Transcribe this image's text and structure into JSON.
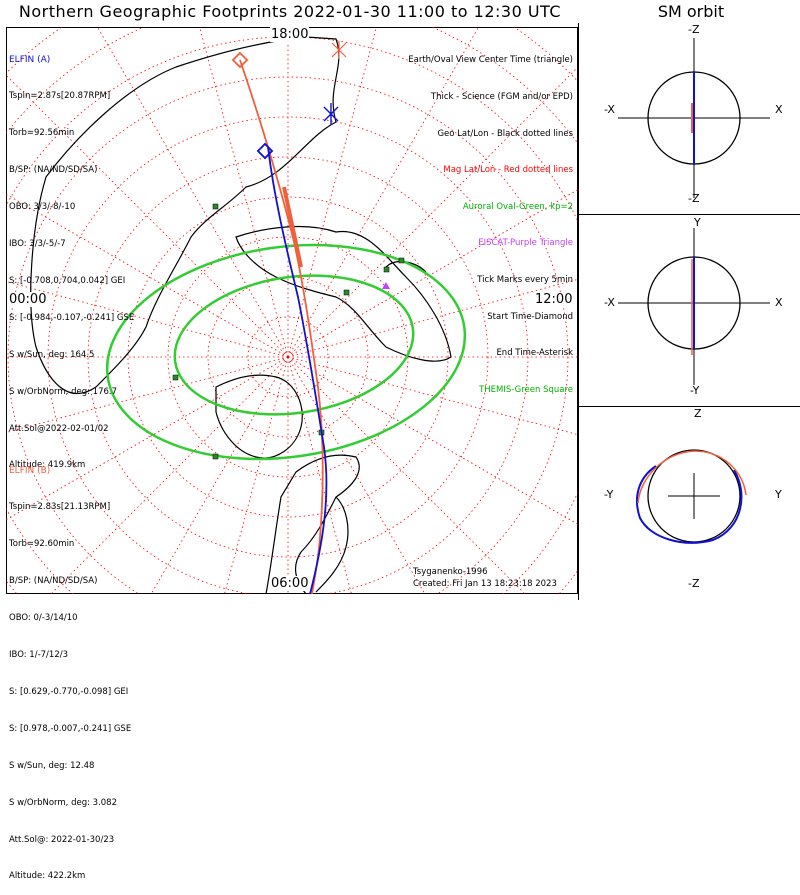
{
  "title": "Northern Geographic Footprints 2022-01-30 11:00 to 12:30 UTC",
  "sm_title": "SM orbit",
  "main_labels": {
    "top": "18:00",
    "left": "00:00",
    "right": "12:00",
    "bottom": "06:00"
  },
  "elfin_a": {
    "name": "ELFIN (A)",
    "color": "#1010d0",
    "lines": [
      "Tspin=2.87s[20.87RPM]",
      "Torb=92.56min",
      "B/SP: (NA/ND/SD/SA)",
      "OBO: 3/3/-8/-10",
      "IBO: 3/3/-5/-7",
      "S: [-0.708,0.704,0.042] GEI",
      "S: [-0.984,-0.107,-0.241] GSE",
      "S w/Sun, deg: 164.5",
      "S w/OrbNorm, deg: 176.7",
      "Att.Sol@2022-02-01/02",
      "Altitude: 419.9km"
    ]
  },
  "elfin_b": {
    "name": "ELFIN (B)",
    "color": "#f0603c",
    "lines": [
      "Tspin=2.83s[21.13RPM]",
      "Torb=92.60min",
      "B/SP: (NA/ND/SD/SA)",
      "OBO: 0/-3/14/10",
      "IBO: 1/-7/12/3",
      "S: [0.629,-0.770,-0.098] GEI",
      "S: [0.978,-0.007,-0.241] GSE",
      "S w/Sun, deg: 12.48",
      "S w/OrbNorm, deg: 3.082",
      "Att.Sol@: 2022-01-30/23",
      "Altitude: 422.2km"
    ]
  },
  "legend": [
    {
      "text": "Earth/Oval View Center Time (triangle)",
      "color": "#000000"
    },
    {
      "text": "Thick - Science (FGM and/or EPD)",
      "color": "#000000"
    },
    {
      "text": "Geo Lat/Lon - Black dotted lines",
      "color": "#000000"
    },
    {
      "text": "Mag Lat/Lon - Red dotted lines",
      "color": "#ff0000"
    },
    {
      "text": "Auroral Oval-Green, kp=2",
      "color": "#00b000"
    },
    {
      "text": "EISCAT-Purple Triangle",
      "color": "#c040ff"
    },
    {
      "text": "Tick Marks every 5min",
      "color": "#000000"
    },
    {
      "text": "Start Time-Diamond",
      "color": "#000000"
    },
    {
      "text": "End Time-Asterisk",
      "color": "#000000"
    },
    {
      "text": "THEMIS-Green Square",
      "color": "#00b000"
    }
  ],
  "footer": {
    "model": "Tsyganenko-1996",
    "created": "Created: Fri Jan 13 18:23:18 2023"
  },
  "orbit_panels": [
    {
      "top": "-Z",
      "bottom": "-Z",
      "left": "-X",
      "right": "X"
    },
    {
      "top": "Y",
      "bottom": "-Y",
      "left": "-X",
      "right": "X"
    },
    {
      "top": "Z",
      "bottom": "-Z",
      "left": "-Y",
      "right": "Y"
    }
  ],
  "colors": {
    "elfin_a": "#1010d0",
    "elfin_b": "#f0603c",
    "oval": "#33cc33",
    "mag_grid": "#ff0000",
    "themis": "#2a8a2a",
    "eiscat": "#c040ff"
  }
}
